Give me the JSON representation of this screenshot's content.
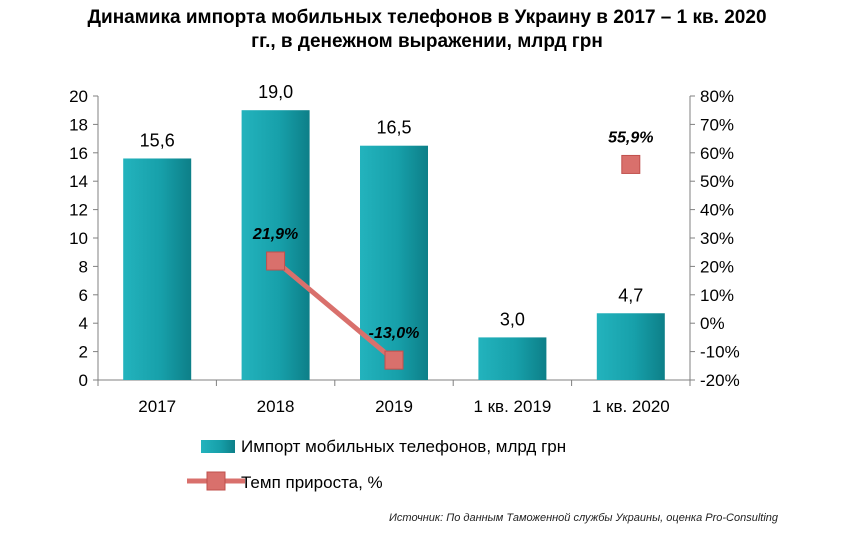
{
  "chart_data": {
    "type": "bar",
    "title_line1": "Динамика импорта мобильных телефонов в Украину в 2017 – 1 кв. 2020",
    "title_line2": "гг., в денежном выражении, млрд грн",
    "categories": [
      "2017",
      "2018",
      "2019",
      "1 кв. 2019",
      "1 кв. 2020"
    ],
    "series": [
      {
        "name": "Импорт мобильных телефонов, млрд грн",
        "values": [
          15.6,
          19.0,
          16.5,
          3.0,
          4.7
        ],
        "labels": [
          "15,6",
          "19,0",
          "16,5",
          "3,0",
          "4,7"
        ],
        "color": "#1a9ba6"
      },
      {
        "name": "Темп прироста, %",
        "values": [
          null,
          21.9,
          -13.0,
          null,
          55.9
        ],
        "labels": [
          "",
          "21,9%",
          "-13,0%",
          "",
          "55,9%"
        ],
        "color": "#d9706c"
      }
    ],
    "y_left": {
      "min": 0,
      "max": 20,
      "ticks": [
        "0",
        "2",
        "4",
        "6",
        "8",
        "10",
        "12",
        "14",
        "16",
        "18",
        "20"
      ]
    },
    "y_right": {
      "min": -20,
      "max": 80,
      "ticks": [
        "-20%",
        "-10%",
        "0%",
        "10%",
        "20%",
        "30%",
        "40%",
        "50%",
        "60%",
        "70%",
        "80%"
      ]
    },
    "legend_position": "bottom",
    "grid": false
  },
  "source": "Источник: По данным Таможенной службы Украины, оценка Pro-Consulting"
}
